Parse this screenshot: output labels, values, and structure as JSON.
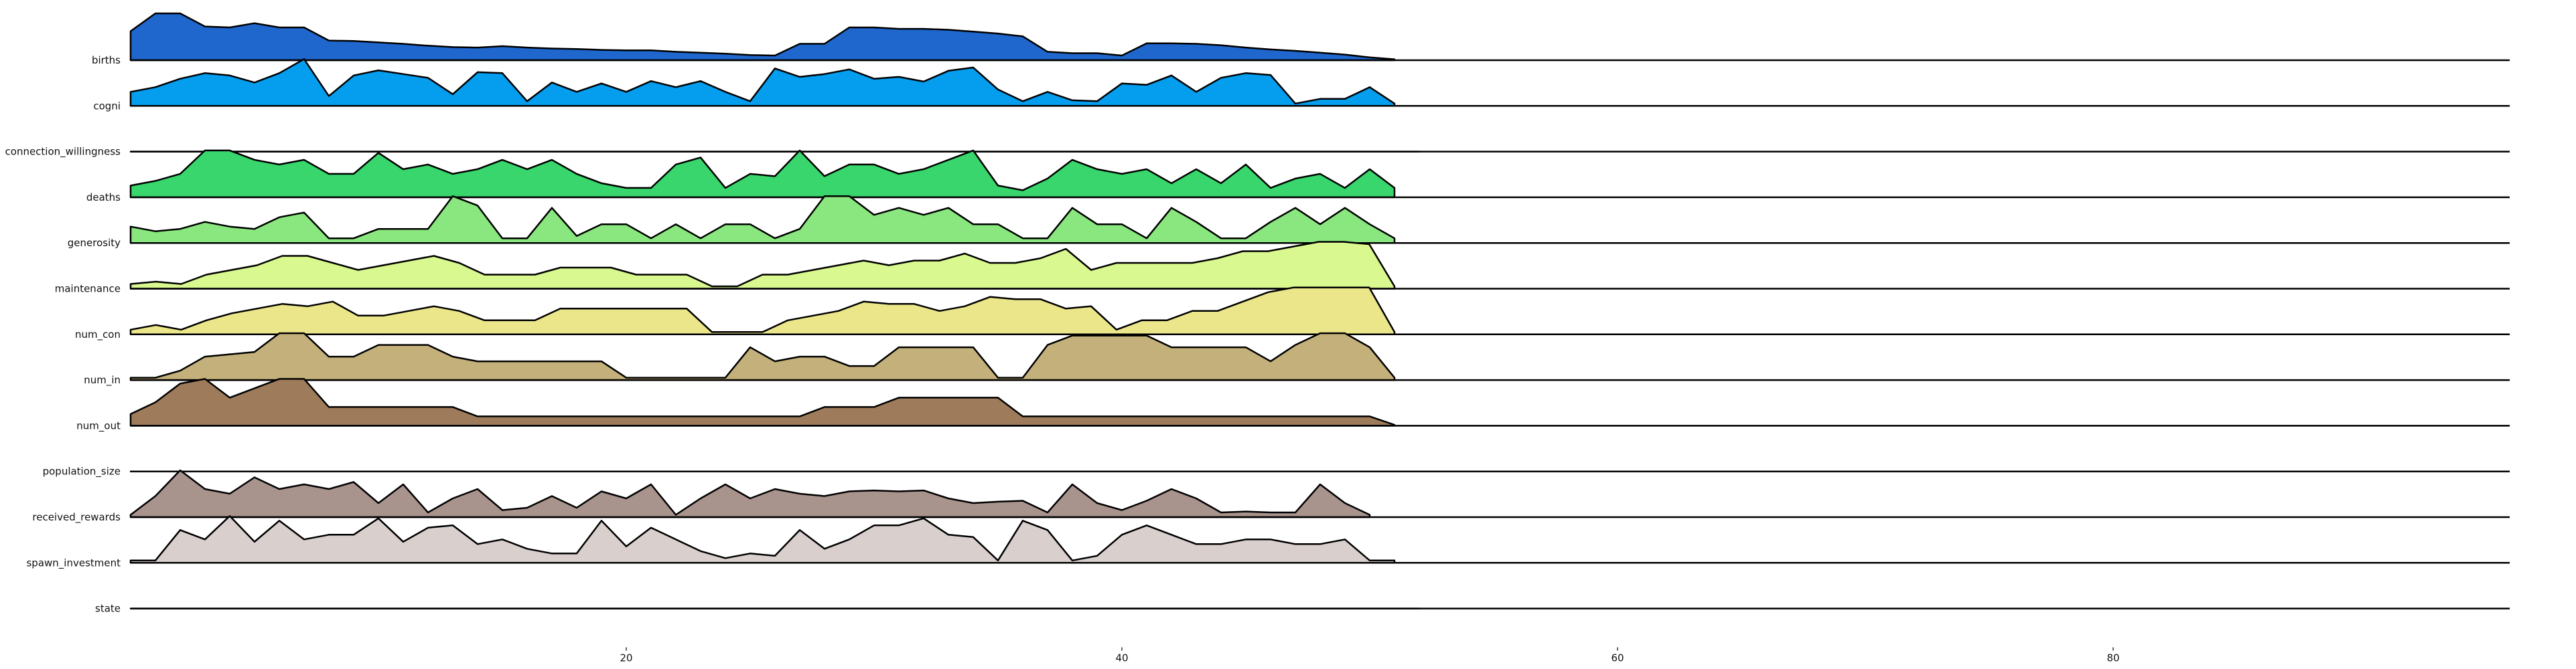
{
  "chart_data": {
    "type": "area",
    "xlim": [
      0,
      96
    ],
    "x_ticks": [
      "20",
      "40",
      "60",
      "80"
    ],
    "x_tick_values": [
      20,
      40,
      60,
      80
    ],
    "grid": false,
    "series": [
      {
        "name": "births",
        "color": "#1f67cc",
        "x_end": 51,
        "values": [
          0.62,
          1.0,
          1.0,
          0.72,
          0.7,
          0.79,
          0.7,
          0.7,
          0.42,
          0.41,
          0.38,
          0.35,
          0.31,
          0.28,
          0.27,
          0.3,
          0.27,
          0.25,
          0.24,
          0.22,
          0.21,
          0.21,
          0.18,
          0.16,
          0.14,
          0.11,
          0.1,
          0.35,
          0.35,
          0.7,
          0.7,
          0.67,
          0.67,
          0.65,
          0.61,
          0.57,
          0.51,
          0.18,
          0.15,
          0.15,
          0.1,
          0.36,
          0.36,
          0.35,
          0.32,
          0.27,
          0.23,
          0.2,
          0.16,
          0.12,
          0.06,
          0.02
        ]
      },
      {
        "name": "cogni",
        "color": "#059ded",
        "x_end": 51,
        "values": [
          0.3,
          0.4,
          0.58,
          0.7,
          0.65,
          0.5,
          0.7,
          1.0,
          0.21,
          0.65,
          0.76,
          0.68,
          0.6,
          0.25,
          0.72,
          0.7,
          0.1,
          0.5,
          0.3,
          0.48,
          0.3,
          0.53,
          0.4,
          0.53,
          0.3,
          0.1,
          0.8,
          0.62,
          0.68,
          0.78,
          0.58,
          0.62,
          0.52,
          0.75,
          0.82,
          0.35,
          0.1,
          0.3,
          0.12,
          0.1,
          0.48,
          0.45,
          0.65,
          0.3,
          0.6,
          0.7,
          0.66,
          0.05,
          0.15,
          0.15,
          0.4,
          0.05
        ]
      },
      {
        "name": "connection_willingness",
        "color": "#00bf81",
        "x_end": 52,
        "values": [
          0,
          0,
          0,
          0,
          0,
          0,
          0,
          0,
          0,
          0,
          0,
          0,
          0,
          0,
          0,
          0,
          0,
          0,
          0,
          0,
          0,
          0,
          0,
          0,
          0,
          0,
          0,
          0,
          0,
          0,
          0,
          0,
          0,
          0,
          0,
          0,
          0,
          0,
          0,
          0,
          0,
          0,
          0,
          0,
          0,
          0,
          0,
          0,
          0,
          0,
          0,
          0,
          0
        ]
      },
      {
        "name": "deaths",
        "color": "#38d66c",
        "x_end": 51,
        "values": [
          0.25,
          0.35,
          0.5,
          1.0,
          1.0,
          0.8,
          0.7,
          0.8,
          0.5,
          0.5,
          0.95,
          0.6,
          0.7,
          0.5,
          0.6,
          0.8,
          0.6,
          0.8,
          0.5,
          0.3,
          0.2,
          0.2,
          0.7,
          0.85,
          0.2,
          0.5,
          0.45,
          1.0,
          0.45,
          0.7,
          0.7,
          0.5,
          0.6,
          0.8,
          1.0,
          0.25,
          0.15,
          0.4,
          0.8,
          0.6,
          0.5,
          0.6,
          0.3,
          0.6,
          0.3,
          0.7,
          0.2,
          0.4,
          0.5,
          0.2,
          0.6,
          0.2
        ]
      },
      {
        "name": "generosity",
        "color": "#8ae67e",
        "x_end": 51,
        "values": [
          0.35,
          0.25,
          0.3,
          0.45,
          0.35,
          0.3,
          0.55,
          0.65,
          0.1,
          0.1,
          0.3,
          0.3,
          0.3,
          1.0,
          0.8,
          0.1,
          0.1,
          0.75,
          0.15,
          0.4,
          0.4,
          0.1,
          0.4,
          0.1,
          0.4,
          0.4,
          0.1,
          0.3,
          1.0,
          1.0,
          0.6,
          0.75,
          0.6,
          0.75,
          0.4,
          0.4,
          0.1,
          0.1,
          0.75,
          0.4,
          0.4,
          0.1,
          0.75,
          0.45,
          0.1,
          0.1,
          0.45,
          0.75,
          0.4,
          0.75,
          0.4,
          0.1
        ]
      },
      {
        "name": "maintenance",
        "color": "#d9f88f",
        "x_end": 51,
        "values": [
          0.1,
          0.15,
          0.1,
          0.3,
          0.4,
          0.5,
          0.7,
          0.7,
          0.55,
          0.4,
          0.5,
          0.6,
          0.7,
          0.55,
          0.3,
          0.3,
          0.3,
          0.45,
          0.45,
          0.45,
          0.3,
          0.3,
          0.3,
          0.05,
          0.05,
          0.3,
          0.3,
          0.4,
          0.5,
          0.6,
          0.5,
          0.6,
          0.6,
          0.75,
          0.55,
          0.55,
          0.65,
          0.85,
          0.4,
          0.55,
          0.55,
          0.55,
          0.55,
          0.65,
          0.8,
          0.8,
          0.9,
          1.0,
          1.0,
          0.95,
          0.05
        ]
      },
      {
        "name": "num_con",
        "color": "#ebe68a",
        "x_end": 51,
        "values": [
          0.1,
          0.2,
          0.1,
          0.3,
          0.45,
          0.55,
          0.65,
          0.6,
          0.7,
          0.4,
          0.4,
          0.5,
          0.6,
          0.5,
          0.3,
          0.3,
          0.3,
          0.55,
          0.55,
          0.55,
          0.55,
          0.55,
          0.55,
          0.05,
          0.05,
          0.05,
          0.3,
          0.4,
          0.5,
          0.7,
          0.65,
          0.65,
          0.5,
          0.6,
          0.8,
          0.75,
          0.75,
          0.55,
          0.6,
          0.1,
          0.3,
          0.3,
          0.5,
          0.5,
          0.7,
          0.9,
          1.0,
          1.0,
          1.0,
          1.0,
          0.05
        ]
      },
      {
        "name": "num_in",
        "color": "#c4b07a",
        "x_end": 51,
        "values": [
          0.05,
          0.05,
          0.2,
          0.5,
          0.55,
          0.6,
          1.0,
          1.0,
          0.5,
          0.5,
          0.75,
          0.75,
          0.75,
          0.5,
          0.4,
          0.4,
          0.4,
          0.4,
          0.4,
          0.4,
          0.05,
          0.05,
          0.05,
          0.05,
          0.05,
          0.7,
          0.4,
          0.5,
          0.5,
          0.3,
          0.3,
          0.7,
          0.7,
          0.7,
          0.7,
          0.05,
          0.05,
          0.75,
          0.95,
          0.95,
          0.95,
          0.95,
          0.7,
          0.7,
          0.7,
          0.7,
          0.4,
          0.75,
          1.0,
          1.0,
          0.7,
          0.05
        ]
      },
      {
        "name": "num_out",
        "color": "#9e7c5b",
        "x_end": 51,
        "values": [
          0.25,
          0.5,
          0.9,
          1.0,
          0.6,
          0.8,
          1.0,
          1.0,
          0.4,
          0.4,
          0.4,
          0.4,
          0.4,
          0.4,
          0.2,
          0.2,
          0.2,
          0.2,
          0.2,
          0.2,
          0.2,
          0.2,
          0.2,
          0.2,
          0.2,
          0.2,
          0.2,
          0.2,
          0.4,
          0.4,
          0.4,
          0.6,
          0.6,
          0.6,
          0.6,
          0.6,
          0.2,
          0.2,
          0.2,
          0.2,
          0.2,
          0.2,
          0.2,
          0.2,
          0.2,
          0.2,
          0.2,
          0.2,
          0.2,
          0.2,
          0.2,
          0.02
        ]
      },
      {
        "name": "population_size",
        "color": "#b7a39a",
        "x_end": 52,
        "values": [
          0,
          0,
          0,
          0,
          0,
          0,
          0,
          0,
          0,
          0,
          0,
          0,
          0,
          0,
          0,
          0,
          0,
          0,
          0,
          0,
          0,
          0,
          0,
          0,
          0,
          0,
          0,
          0,
          0,
          0,
          0,
          0,
          0,
          0,
          0,
          0,
          0,
          0,
          0,
          0,
          0,
          0,
          0,
          0,
          0,
          0,
          0,
          0,
          0,
          0,
          0,
          0,
          0
        ]
      },
      {
        "name": "received_rewards",
        "color": "#a9938d",
        "x_end": 50,
        "values": [
          0.05,
          0.45,
          1.0,
          0.6,
          0.5,
          0.85,
          0.6,
          0.7,
          0.6,
          0.75,
          0.3,
          0.7,
          0.1,
          0.4,
          0.6,
          0.15,
          0.2,
          0.45,
          0.2,
          0.55,
          0.4,
          0.7,
          0.05,
          0.4,
          0.7,
          0.4,
          0.6,
          0.5,
          0.45,
          0.55,
          0.57,
          0.55,
          0.57,
          0.4,
          0.3,
          0.33,
          0.35,
          0.1,
          0.7,
          0.3,
          0.15,
          0.35,
          0.6,
          0.4,
          0.1,
          0.12,
          0.1,
          0.1,
          0.7,
          0.3,
          0.05
        ]
      },
      {
        "name": "spawn_investment",
        "color": "#d9cfcd",
        "x_end": 51,
        "values": [
          0.05,
          0.05,
          0.7,
          0.5,
          1.0,
          0.45,
          0.9,
          0.5,
          0.6,
          0.6,
          0.95,
          0.45,
          0.75,
          0.8,
          0.4,
          0.5,
          0.3,
          0.2,
          0.2,
          0.9,
          0.35,
          0.75,
          0.5,
          0.25,
          0.1,
          0.2,
          0.15,
          0.7,
          0.3,
          0.5,
          0.8,
          0.8,
          0.95,
          0.6,
          0.55,
          0.05,
          0.9,
          0.7,
          0.05,
          0.15,
          0.6,
          0.8,
          0.6,
          0.4,
          0.4,
          0.5,
          0.5,
          0.4,
          0.4,
          0.5,
          0.05,
          0.05
        ]
      },
      {
        "name": "state",
        "color": "#e9e0de",
        "x_end": 52,
        "values": [
          0,
          0,
          0,
          0,
          0,
          0,
          0,
          0,
          0,
          0,
          0,
          0,
          0,
          0,
          0,
          0,
          0,
          0,
          0,
          0,
          0,
          0,
          0,
          0,
          0,
          0,
          0,
          0,
          0,
          0,
          0,
          0,
          0,
          0,
          0,
          0,
          0,
          0,
          0,
          0,
          0,
          0,
          0,
          0,
          0,
          0,
          0,
          0,
          0,
          0,
          0,
          0,
          0
        ]
      }
    ]
  }
}
